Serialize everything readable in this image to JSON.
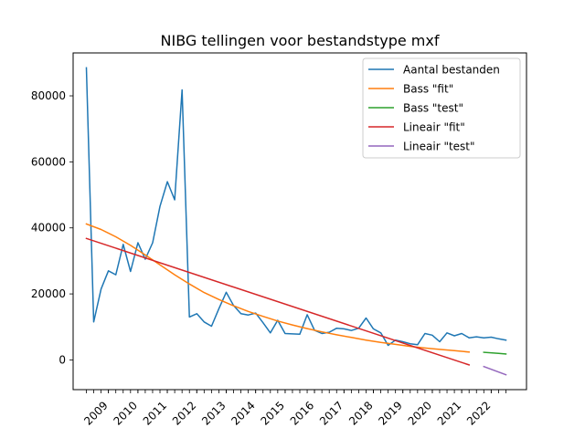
{
  "chart_data": {
    "type": "line",
    "title": "NIBG tellingen voor bestandstype mxf",
    "xlabel": "",
    "ylabel": "",
    "ylim": [
      -9000,
      93000
    ],
    "xlim": [
      2007.8,
      2023.2
    ],
    "grid": false,
    "legend_position": "top-right",
    "x_ticks": [
      2009,
      2010,
      2011,
      2012,
      2013,
      2014,
      2015,
      2016,
      2017,
      2018,
      2019,
      2020,
      2021,
      2022
    ],
    "x_tick_labels": [
      "2009",
      "2010",
      "2011",
      "2012",
      "2013",
      "2014",
      "2015",
      "2016",
      "2017",
      "2018",
      "2019",
      "2020",
      "2021",
      "2022"
    ],
    "y_ticks": [
      0,
      20000,
      40000,
      60000,
      80000
    ],
    "y_tick_labels": [
      "0",
      "20000",
      "40000",
      "60000",
      "80000"
    ],
    "series": [
      {
        "name": "Aantal bestanden",
        "color": "#1f77b4",
        "x": [
          2008.25,
          2008.5,
          2008.75,
          2009.0,
          2009.25,
          2009.5,
          2009.75,
          2010.0,
          2010.25,
          2010.5,
          2010.75,
          2011.0,
          2011.25,
          2011.5,
          2011.75,
          2012.0,
          2012.25,
          2012.5,
          2012.75,
          2013.0,
          2013.25,
          2013.5,
          2013.75,
          2014.0,
          2014.25,
          2014.5,
          2014.75,
          2015.0,
          2015.25,
          2015.5,
          2015.75,
          2016.0,
          2016.25,
          2016.5,
          2016.75,
          2017.0,
          2017.25,
          2017.5,
          2017.75,
          2018.0,
          2018.25,
          2018.5,
          2018.75,
          2019.0,
          2019.25,
          2019.5,
          2019.75,
          2020.0,
          2020.25,
          2020.5,
          2020.75,
          2021.0,
          2021.25,
          2021.5,
          2021.75,
          2022.0,
          2022.25,
          2022.5
        ],
        "y": [
          88500,
          11500,
          21500,
          27000,
          25800,
          35000,
          26800,
          35500,
          30500,
          35500,
          46500,
          54000,
          48500,
          81800,
          13000,
          14000,
          11500,
          10200,
          15500,
          20500,
          16500,
          14000,
          13600,
          14200,
          11300,
          8200,
          12000,
          8000,
          7900,
          7800,
          13700,
          9000,
          8000,
          8400,
          9600,
          9400,
          8900,
          9600,
          12700,
          9400,
          8200,
          4400,
          6000,
          5500,
          4900,
          4600,
          8000,
          7500,
          5500,
          8200,
          7300,
          8000,
          6700,
          7000,
          6700,
          6900,
          6400,
          6000
        ]
      },
      {
        "name": "Bass \"fit\"",
        "color": "#ff7f0e",
        "x": [
          2008.25,
          2008.75,
          2009.25,
          2009.75,
          2010.25,
          2010.75,
          2011.25,
          2011.75,
          2012.25,
          2012.75,
          2013.25,
          2013.75,
          2014.25,
          2014.75,
          2015.25,
          2015.75,
          2016.25,
          2016.75,
          2017.25,
          2017.75,
          2018.25,
          2018.75,
          2019.25,
          2019.75,
          2020.25,
          2020.75,
          2021.25
        ],
        "y": [
          41200,
          39500,
          37300,
          34700,
          31800,
          28800,
          25800,
          23000,
          20400,
          18300,
          16400,
          14700,
          13200,
          11800,
          10600,
          9500,
          8500,
          7600,
          6800,
          6000,
          5300,
          4700,
          4100,
          3600,
          3200,
          2800,
          2400
        ]
      },
      {
        "name": "Bass \"test\"",
        "color": "#2ca02c",
        "x": [
          2021.75,
          2022.25,
          2022.5
        ],
        "y": [
          2300,
          2000,
          1800
        ]
      },
      {
        "name": "Lineair \"fit\"",
        "color": "#d62728",
        "x": [
          2008.25,
          2021.25
        ],
        "y": [
          36800,
          -1500
        ]
      },
      {
        "name": "Lineair \"test\"",
        "color": "#9467bd",
        "x": [
          2021.75,
          2022.5
        ],
        "y": [
          -2000,
          -4500
        ]
      }
    ]
  }
}
